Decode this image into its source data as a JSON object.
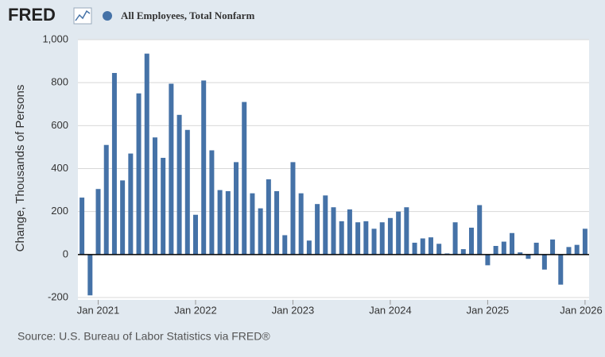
{
  "logo": "FRED",
  "source": "Source: U.S. Bureau of Labor Statistics via FRED®",
  "chart_data": {
    "type": "bar",
    "y_label": "Change, Thousands of Persons",
    "categories": [
      null,
      null,
      "Jan 2021",
      null,
      null,
      null,
      null,
      null,
      null,
      null,
      null,
      null,
      null,
      null,
      "Jan 2022",
      null,
      null,
      null,
      null,
      null,
      null,
      null,
      null,
      null,
      null,
      null,
      "Jan 2023",
      null,
      null,
      null,
      null,
      null,
      null,
      null,
      null,
      null,
      null,
      null,
      "Jan 2024",
      null,
      null,
      null,
      null,
      null,
      null,
      null,
      null,
      null,
      null,
      null,
      "Jan 2025",
      null,
      null,
      null,
      null,
      null,
      null,
      null,
      null,
      null,
      null,
      null,
      "Jan 2026"
    ],
    "series": [
      {
        "name": "All Employees, Total Nonfarm",
        "color": "#4572a7",
        "values": [
          265,
          -190,
          305,
          510,
          845,
          345,
          470,
          750,
          935,
          545,
          450,
          795,
          650,
          580,
          185,
          810,
          485,
          300,
          295,
          430,
          710,
          285,
          215,
          350,
          295,
          90,
          430,
          285,
          65,
          235,
          275,
          220,
          155,
          210,
          150,
          155,
          120,
          150,
          170,
          200,
          220,
          55,
          75,
          80,
          50,
          5,
          150,
          25,
          125,
          230,
          -50,
          40,
          60,
          100,
          10,
          -20,
          55,
          -70,
          70,
          -140,
          35,
          45,
          120
        ]
      }
    ],
    "ylim": [
      -200,
      1000
    ],
    "yticks": [
      -200,
      0,
      200,
      400,
      600,
      800,
      {
        "value": 1000,
        "label": "1,000"
      }
    ],
    "grid": true
  }
}
